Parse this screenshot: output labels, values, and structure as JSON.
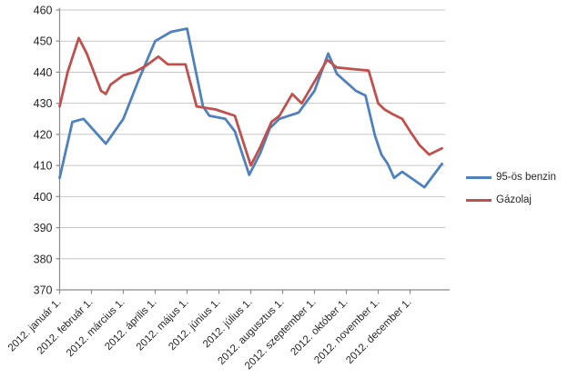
{
  "chart_data": {
    "type": "line",
    "title": "",
    "grid": true,
    "plot_bg": "#ffffff",
    "grid_color": "#c6c6c6",
    "axis_color": "#8a8a8a",
    "text_color": "#262626",
    "y_axis": {
      "min": 370,
      "max": 460,
      "step": 10,
      "tick_labels": [
        "370",
        "380",
        "390",
        "400",
        "410",
        "420",
        "430",
        "440",
        "450",
        "460"
      ]
    },
    "x_axis": {
      "unit": "months since 2012. január 1. (1 unit = 1 month)",
      "tick_labels": [
        "2012. január 1.",
        "2012. február 1.",
        "2012. március 1.",
        "2012. április 1.",
        "2012. május 1.",
        "2012. június 1.",
        "2012. július 1.",
        "2012. augusztus 1.",
        "2012. szeptember 1.",
        "2012. október 1.",
        "2012. november 1.",
        "2012. december 1."
      ]
    },
    "legend_position": "right",
    "series": [
      {
        "name": "95-ös benzin",
        "color": "#4F81BD",
        "points": [
          [
            0,
            406
          ],
          [
            0.4,
            424
          ],
          [
            0.75,
            425
          ],
          [
            1.45,
            417
          ],
          [
            2,
            425
          ],
          [
            2.5,
            438
          ],
          [
            3,
            450
          ],
          [
            3.5,
            453
          ],
          [
            4,
            454
          ],
          [
            4.5,
            429
          ],
          [
            4.7,
            426
          ],
          [
            5.2,
            425
          ],
          [
            5.5,
            421
          ],
          [
            5.95,
            407
          ],
          [
            6.3,
            414
          ],
          [
            6.6,
            422
          ],
          [
            6.9,
            425
          ],
          [
            7.5,
            427
          ],
          [
            8,
            434
          ],
          [
            8.43,
            446
          ],
          [
            8.7,
            439.5
          ],
          [
            9.3,
            434
          ],
          [
            9.6,
            432.5
          ],
          [
            9.9,
            419.5
          ],
          [
            10.1,
            413.5
          ],
          [
            10.3,
            410.5
          ],
          [
            10.5,
            406
          ],
          [
            10.75,
            408
          ],
          [
            11.45,
            403
          ],
          [
            12,
            410.5
          ]
        ]
      },
      {
        "name": "Gázolaj",
        "color": "#C0504D",
        "points": [
          [
            0,
            429
          ],
          [
            0.25,
            440
          ],
          [
            0.6,
            451
          ],
          [
            0.85,
            446
          ],
          [
            1.3,
            434
          ],
          [
            1.45,
            433
          ],
          [
            1.6,
            436
          ],
          [
            2,
            439
          ],
          [
            2.35,
            440
          ],
          [
            2.7,
            442
          ],
          [
            3.1,
            445
          ],
          [
            3.4,
            442.5
          ],
          [
            3.95,
            442.5
          ],
          [
            4.3,
            429
          ],
          [
            4.9,
            428
          ],
          [
            5.5,
            426
          ],
          [
            6,
            410
          ],
          [
            6.3,
            416
          ],
          [
            6.65,
            424
          ],
          [
            6.9,
            426
          ],
          [
            7.3,
            433
          ],
          [
            7.6,
            430
          ],
          [
            8.4,
            444
          ],
          [
            8.7,
            441.5
          ],
          [
            9.7,
            440.5
          ],
          [
            10,
            430
          ],
          [
            10.2,
            428
          ],
          [
            10.45,
            426.5
          ],
          [
            10.75,
            425
          ],
          [
            11,
            421
          ],
          [
            11.3,
            416.5
          ],
          [
            11.6,
            413.5
          ],
          [
            12,
            415.5
          ]
        ]
      }
    ]
  }
}
